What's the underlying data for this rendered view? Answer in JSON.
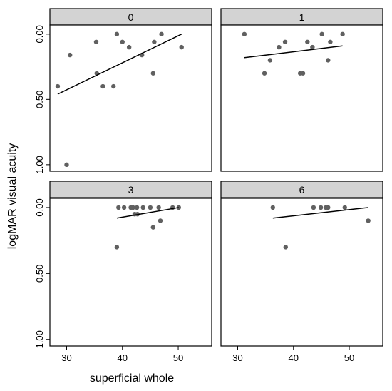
{
  "chart_data": {
    "type": "scatter",
    "xlabel": "superficial whole",
    "ylabel": "logMAR visual acuity",
    "xlim": [
      27,
      56
    ],
    "ylim": [
      1.05,
      -0.07
    ],
    "y_reversed": true,
    "x_ticks": [
      30,
      40,
      50
    ],
    "x_tick_labels": [
      "30",
      "40",
      "50"
    ],
    "y_ticks": [
      0.0,
      0.5,
      1.0
    ],
    "y_tick_labels": [
      "0.00",
      "0.50",
      "1.00"
    ],
    "facets": [
      {
        "label": "0",
        "points": [
          {
            "x": 28.4,
            "y": 0.4
          },
          {
            "x": 30.0,
            "y": 1.0
          },
          {
            "x": 30.6,
            "y": 0.16
          },
          {
            "x": 35.3,
            "y": 0.06
          },
          {
            "x": 35.4,
            "y": 0.3
          },
          {
            "x": 36.5,
            "y": 0.4
          },
          {
            "x": 38.4,
            "y": 0.4
          },
          {
            "x": 39.0,
            "y": 0.0
          },
          {
            "x": 40.0,
            "y": 0.06
          },
          {
            "x": 41.2,
            "y": 0.1
          },
          {
            "x": 43.5,
            "y": 0.16
          },
          {
            "x": 45.5,
            "y": 0.3
          },
          {
            "x": 45.7,
            "y": 0.06
          },
          {
            "x": 47.0,
            "y": 0.0
          },
          {
            "x": 50.6,
            "y": 0.1
          }
        ],
        "fit": {
          "x": [
            28.4,
            50.6
          ],
          "y": [
            0.46,
            0.0
          ]
        }
      },
      {
        "label": "1",
        "points": [
          {
            "x": 31.2,
            "y": 0.0
          },
          {
            "x": 34.8,
            "y": 0.3
          },
          {
            "x": 35.8,
            "y": 0.2
          },
          {
            "x": 37.4,
            "y": 0.1
          },
          {
            "x": 38.5,
            "y": 0.06
          },
          {
            "x": 41.2,
            "y": 0.3
          },
          {
            "x": 41.7,
            "y": 0.3
          },
          {
            "x": 42.5,
            "y": 0.06
          },
          {
            "x": 43.4,
            "y": 0.1
          },
          {
            "x": 45.1,
            "y": 0.0
          },
          {
            "x": 46.2,
            "y": 0.2
          },
          {
            "x": 46.6,
            "y": 0.06
          },
          {
            "x": 48.8,
            "y": 0.0
          }
        ],
        "fit": {
          "x": [
            31.2,
            48.8
          ],
          "y": [
            0.18,
            0.09
          ]
        }
      },
      {
        "label": "3",
        "points": [
          {
            "x": 39.0,
            "y": 0.3
          },
          {
            "x": 39.3,
            "y": 0.0
          },
          {
            "x": 40.3,
            "y": 0.0
          },
          {
            "x": 41.5,
            "y": 0.0
          },
          {
            "x": 41.9,
            "y": 0.0
          },
          {
            "x": 42.2,
            "y": 0.05
          },
          {
            "x": 42.6,
            "y": 0.0
          },
          {
            "x": 42.7,
            "y": 0.05
          },
          {
            "x": 43.7,
            "y": 0.0
          },
          {
            "x": 45.0,
            "y": 0.0
          },
          {
            "x": 45.5,
            "y": 0.15
          },
          {
            "x": 46.5,
            "y": 0.0
          },
          {
            "x": 46.8,
            "y": 0.1
          },
          {
            "x": 49.0,
            "y": 0.0
          },
          {
            "x": 50.1,
            "y": 0.0
          }
        ],
        "fit": {
          "x": [
            39.0,
            50.1
          ],
          "y": [
            0.08,
            0.0
          ]
        }
      },
      {
        "label": "6",
        "points": [
          {
            "x": 36.3,
            "y": 0.0
          },
          {
            "x": 38.6,
            "y": 0.3
          },
          {
            "x": 43.6,
            "y": 0.0
          },
          {
            "x": 44.9,
            "y": 0.0
          },
          {
            "x": 45.8,
            "y": 0.0
          },
          {
            "x": 46.2,
            "y": 0.0
          },
          {
            "x": 49.2,
            "y": 0.0
          },
          {
            "x": 53.4,
            "y": 0.1
          }
        ],
        "fit": {
          "x": [
            36.3,
            53.4
          ],
          "y": [
            0.08,
            0.0
          ]
        }
      }
    ],
    "point_color": "#606060",
    "strip_color": "#d3d3d3",
    "grid": false,
    "legend": "none"
  }
}
